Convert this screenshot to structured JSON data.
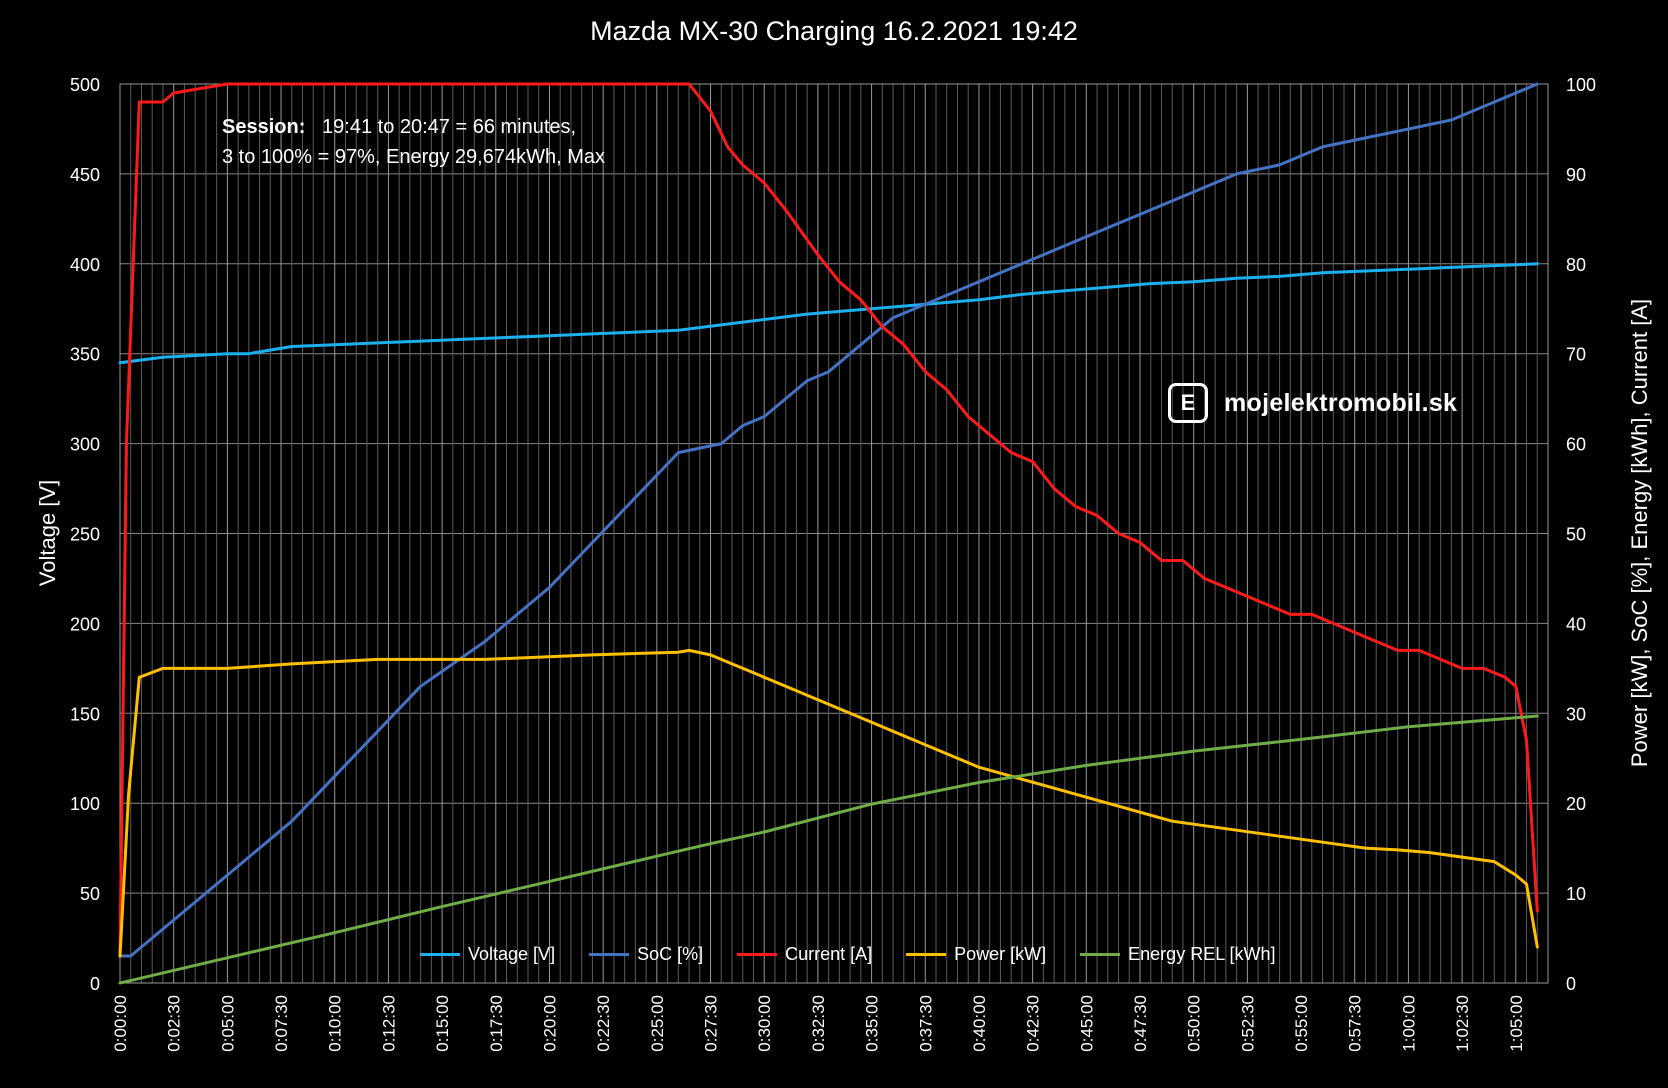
{
  "chart_data": {
    "type": "line",
    "title": "Mazda MX-30 Charging 16.2.2021 19:42",
    "ylabel_left": "Voltage [V]",
    "ylabel_right": "Power [kW], SoC [%], Energy [kWh], Current [A]",
    "ylim_left": [
      0,
      500
    ],
    "ylim_right": [
      0,
      100
    ],
    "yticks_left": [
      "0",
      "50",
      "100",
      "150",
      "200",
      "250",
      "300",
      "350",
      "400",
      "450",
      "500"
    ],
    "yticks_right": [
      "0",
      "10",
      "20",
      "30",
      "40",
      "50",
      "60",
      "70",
      "80",
      "90",
      "100"
    ],
    "xlim_minutes": [
      0,
      66.5
    ],
    "xticks": [
      "0:00:00",
      "0:02:30",
      "0:05:00",
      "0:07:30",
      "0:10:00",
      "0:12:30",
      "0:15:00",
      "0:17:30",
      "0:20:00",
      "0:22:30",
      "0:25:00",
      "0:27:30",
      "0:30:00",
      "0:32:30",
      "0:35:00",
      "0:37:30",
      "0:40:00",
      "0:42:30",
      "0:45:00",
      "0:47:30",
      "0:50:00",
      "0:52:30",
      "0:55:00",
      "0:57:30",
      "1:00:00",
      "1:02:30",
      "1:05:00"
    ],
    "grid": true,
    "legend_position": "bottom",
    "series": [
      {
        "name": "Voltage [V]",
        "axis": "left",
        "color": "#1cb0f0",
        "x": [
          0,
          2,
          5,
          6,
          8,
          10,
          12,
          14,
          16,
          18,
          20,
          22,
          24,
          26,
          28,
          30,
          32,
          34,
          36,
          38,
          40,
          42,
          44,
          46,
          48,
          50,
          52,
          54,
          56,
          58,
          60,
          62,
          64,
          66
        ],
        "y": [
          345,
          348,
          350,
          350,
          354,
          355,
          356,
          357,
          358,
          359,
          360,
          361,
          362,
          363,
          366,
          369,
          372,
          374,
          376,
          378,
          380,
          383,
          385,
          387,
          389,
          390,
          392,
          393,
          395,
          396,
          397,
          398,
          399,
          400
        ]
      },
      {
        "name": "SoC [%]",
        "axis": "right",
        "color": "#4472c4",
        "x": [
          0,
          0.5,
          4,
          5,
          6,
          7,
          8,
          10,
          12,
          14,
          17,
          18,
          19,
          20,
          22,
          24,
          26,
          28,
          29,
          30,
          32,
          33,
          35,
          36,
          37,
          38,
          39,
          40,
          41,
          42,
          44,
          46,
          48,
          50,
          52,
          54,
          56,
          58,
          60,
          62,
          64,
          66
        ],
        "y": [
          3,
          3,
          10,
          12,
          14,
          16,
          18,
          23,
          28,
          33,
          38,
          40,
          42,
          44,
          49,
          54,
          59,
          60,
          62,
          63,
          67,
          68,
          72,
          74,
          75,
          76,
          77,
          78,
          79,
          80,
          82,
          84,
          86,
          88,
          90,
          91,
          93,
          94,
          95,
          96,
          98,
          100
        ]
      },
      {
        "name": "Current [A]",
        "axis": "right",
        "color": "#ff1a1a",
        "x": [
          0,
          0.3,
          0.9,
          2,
          2.5,
          5,
          26.5,
          27.5,
          28.3,
          29,
          30,
          31,
          32.5,
          33.5,
          34.5,
          35.5,
          36.5,
          37.5,
          38.5,
          39.5,
          40.5,
          41.5,
          42.5,
          43.5,
          44.5,
          45.5,
          46.5,
          47.5,
          48.5,
          49.5,
          50.5,
          51.5,
          52.5,
          53.5,
          54.5,
          55.5,
          56.5,
          57.5,
          58.5,
          59.5,
          60.5,
          61.5,
          62.5,
          63.5,
          64.5,
          65,
          65.5,
          66
        ],
        "y": [
          3,
          60,
          98,
          98,
          99,
          100,
          100,
          97,
          93,
          91,
          89,
          86,
          81,
          78,
          76,
          73,
          71,
          68,
          66,
          63,
          61,
          59,
          58,
          55,
          53,
          52,
          50,
          49,
          47,
          47,
          45,
          44,
          43,
          42,
          41,
          41,
          40,
          39,
          38,
          37,
          37,
          36,
          35,
          35,
          34,
          33,
          27,
          8
        ]
      },
      {
        "name": "Power [kW]",
        "axis": "right",
        "color": "#ffc000",
        "x": [
          0,
          0.4,
          0.9,
          2,
          3,
          5,
          8,
          12,
          17,
          22,
          26,
          26.5,
          27.5,
          28.5,
          29.5,
          31,
          32.5,
          34,
          35.5,
          37,
          38.5,
          40,
          41.5,
          43,
          44.5,
          46,
          47.5,
          49,
          50.5,
          52,
          53.5,
          55,
          56.5,
          58,
          59.5,
          61,
          62.5,
          64,
          65,
          65.5,
          66
        ],
        "y": [
          3,
          21,
          34,
          35,
          35,
          35,
          35.5,
          36,
          36,
          36.5,
          36.8,
          37,
          36.5,
          35.5,
          34.5,
          33,
          31.5,
          30,
          28.5,
          27,
          25.5,
          24,
          23,
          22,
          21,
          20,
          19,
          18,
          17.5,
          17,
          16.5,
          16,
          15.5,
          15,
          14.8,
          14.5,
          14,
          13.5,
          12,
          11,
          4
        ]
      },
      {
        "name": "Energy REL [kWh]",
        "axis": "right",
        "color": "#70ad47",
        "x": [
          0,
          5,
          10,
          15,
          20,
          25,
          27.5,
          30,
          35,
          40,
          45,
          50,
          55,
          60,
          66
        ],
        "y": [
          0,
          2.8,
          5.6,
          8.5,
          11.3,
          14.1,
          15.5,
          16.8,
          19.9,
          22.3,
          24.2,
          25.8,
          27.1,
          28.5,
          29.7
        ]
      }
    ]
  },
  "annotation": {
    "session_label": "Session:",
    "session_text": "19:41 to 20:47 = 66 minutes,",
    "line2": "3 to 100% = 97%, Energy 29,674kWh, Max"
  },
  "brand": {
    "letter": "E",
    "name": "mojelektromobil.sk"
  }
}
